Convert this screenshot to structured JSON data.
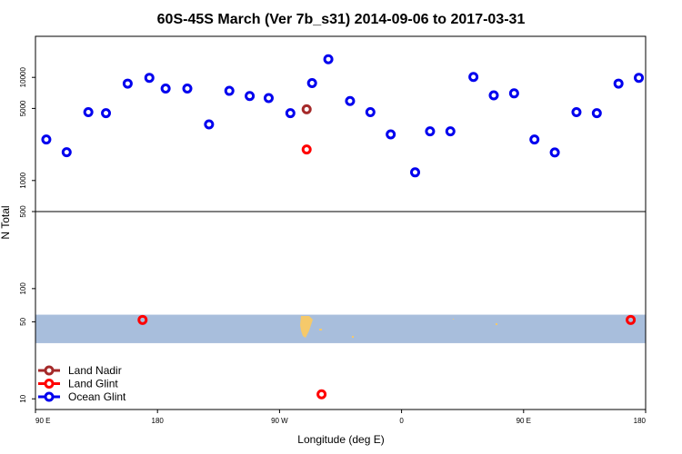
{
  "chart_data": {
    "type": "scatter",
    "title": "60S-45S March (Ver 7b_s31)   2014-09-06 to 2017-03-31",
    "xlabel": "Longitude (deg E)",
    "ylabel": "N Total",
    "x_ticks": [
      {
        "value": 90,
        "label": "90 E"
      },
      {
        "value": 180,
        "label": "180"
      },
      {
        "value": 270,
        "label": "90 W"
      },
      {
        "value": 360,
        "label": "0"
      },
      {
        "value": 450,
        "label": "90 E"
      },
      {
        "value": 540,
        "label": "180"
      }
    ],
    "xlim": [
      90,
      540
    ],
    "upper_panel": {
      "scale": "log",
      "ylim": [
        500,
        25000
      ],
      "ticks": [
        {
          "value": 500,
          "label": "500"
        },
        {
          "value": 1000,
          "label": "1000"
        },
        {
          "value": 5000,
          "label": "5000"
        },
        {
          "value": 10000,
          "label": "10000"
        }
      ]
    },
    "lower_panel": {
      "scale": "log",
      "ylim": [
        8,
        500
      ],
      "ticks": [
        {
          "value": 10,
          "label": "10"
        },
        {
          "value": 50,
          "label": "50"
        },
        {
          "value": 100,
          "label": "100"
        }
      ],
      "band": {
        "from": 32,
        "to": 58,
        "color": "#a8bedc"
      }
    },
    "series": [
      {
        "name": "Ocean Glint",
        "color": "#0000ee",
        "points": [
          {
            "x": 98,
            "y": 2500
          },
          {
            "x": 113,
            "y": 1880
          },
          {
            "x": 129,
            "y": 4600
          },
          {
            "x": 142,
            "y": 4500
          },
          {
            "x": 158,
            "y": 8700
          },
          {
            "x": 174,
            "y": 9900
          },
          {
            "x": 186,
            "y": 7800
          },
          {
            "x": 202,
            "y": 7800
          },
          {
            "x": 218,
            "y": 3500
          },
          {
            "x": 233,
            "y": 7400
          },
          {
            "x": 248,
            "y": 6600
          },
          {
            "x": 262,
            "y": 6300
          },
          {
            "x": 278,
            "y": 4500
          },
          {
            "x": 294,
            "y": 8800
          },
          {
            "x": 306,
            "y": 15000
          },
          {
            "x": 322,
            "y": 5900
          },
          {
            "x": 337,
            "y": 4600
          },
          {
            "x": 352,
            "y": 2800
          },
          {
            "x": 370,
            "y": 1200
          },
          {
            "x": 381,
            "y": 3000
          },
          {
            "x": 396,
            "y": 3000
          },
          {
            "x": 413,
            "y": 10100
          },
          {
            "x": 428,
            "y": 6700
          },
          {
            "x": 443,
            "y": 7000
          },
          {
            "x": 458,
            "y": 2500
          },
          {
            "x": 473,
            "y": 1870
          },
          {
            "x": 489,
            "y": 4600
          },
          {
            "x": 504,
            "y": 4500
          },
          {
            "x": 520,
            "y": 8700
          },
          {
            "x": 535,
            "y": 9900
          }
        ]
      },
      {
        "name": "Land Nadir",
        "color": "#a52a2a",
        "points": [
          {
            "x": 290,
            "y": 4900
          }
        ]
      },
      {
        "name": "Land Glint",
        "color": "#ff0000",
        "points": [
          {
            "x": 290,
            "y": 2000
          },
          {
            "x": 169,
            "y": 52
          },
          {
            "x": 529,
            "y": 52
          },
          {
            "x": 301,
            "y": 11
          }
        ]
      }
    ],
    "legend": {
      "placement": "bottom-left",
      "entries": [
        "Land Nadir",
        "Land Glint",
        "Ocean Glint"
      ]
    }
  }
}
